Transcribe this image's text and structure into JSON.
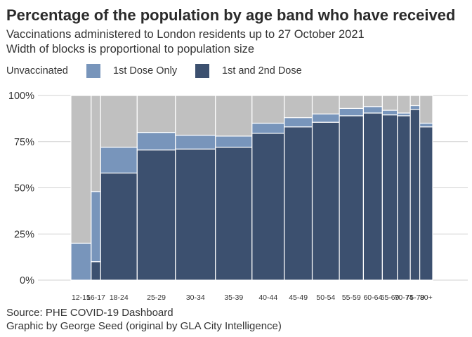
{
  "title": "Percentage of the population by age band who have received",
  "subtitle_line1": "Vaccinations administered to London residents up to 27 October 2021",
  "subtitle_line2": "Width of blocks is proportional to population size",
  "caption_line1": "Source: PHE COVID-19 Dashboard",
  "caption_line2": "Graphic by George Seed (original by GLA City Intelligence)",
  "legend": [
    {
      "label": "Unvaccinated",
      "color": "#c0c0c0"
    },
    {
      "label": "1st Dose Only",
      "color": "#7895bb"
    },
    {
      "label": "1st and 2nd Dose",
      "color": "#3c506f"
    }
  ],
  "chart_data": {
    "type": "bar",
    "subtype": "stacked-marimekko",
    "categories": [
      "12-15",
      "16-17",
      "18-24",
      "25-29",
      "30-34",
      "35-39",
      "40-44",
      "45-49",
      "50-54",
      "55-59",
      "60-64",
      "65-69",
      "70-74",
      "75-79",
      "80+"
    ],
    "relative_population": [
      4.7,
      2.2,
      8.5,
      8.9,
      9.3,
      8.5,
      7.5,
      6.5,
      6.3,
      5.6,
      4.4,
      3.5,
      3.0,
      2.2,
      3.0
    ],
    "series": [
      {
        "name": "1st and 2nd Dose",
        "values": [
          0,
          10,
          58,
          70.5,
          71,
          72,
          79.5,
          83,
          85.5,
          89,
          90.5,
          89.5,
          89,
          92.5,
          83
        ]
      },
      {
        "name": "1st Dose Only",
        "values": [
          20,
          38,
          14,
          9.5,
          7.5,
          6,
          5.5,
          5,
          4.5,
          4,
          3.5,
          2.5,
          1.5,
          2,
          2
        ]
      },
      {
        "name": "Unvaccinated",
        "values": [
          80,
          52,
          28,
          20,
          21.5,
          22,
          15,
          12,
          10,
          7,
          6,
          8,
          9.5,
          5.5,
          15
        ]
      }
    ],
    "y_ticks": [
      "0%",
      "25%",
      "50%",
      "75%",
      "100%"
    ],
    "ylim": [
      0,
      100
    ],
    "grid": true,
    "legend_position": "top"
  }
}
